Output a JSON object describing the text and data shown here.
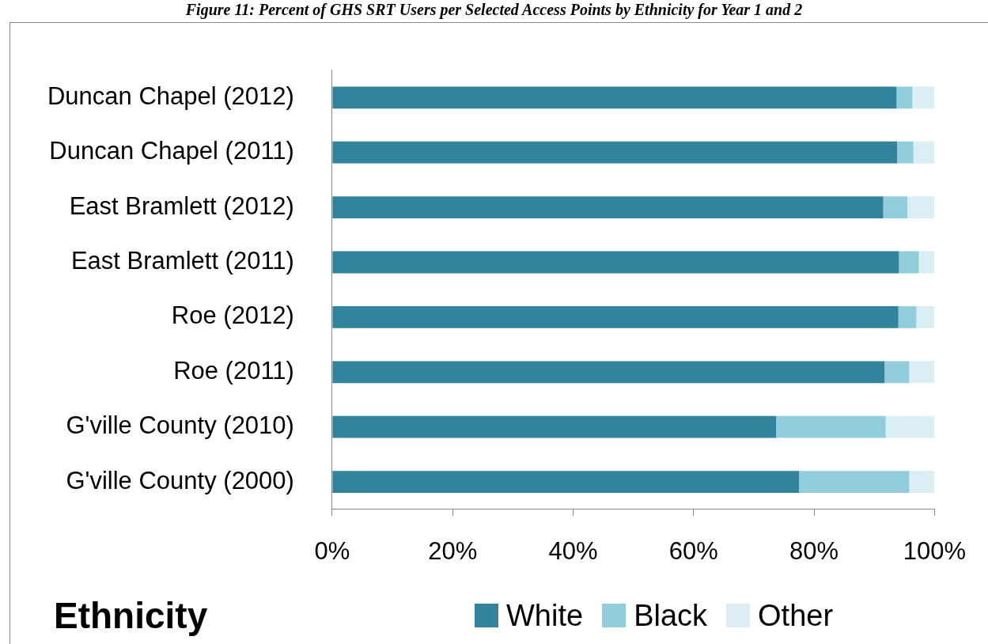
{
  "chart_data": {
    "type": "bar",
    "orientation": "horizontal",
    "stacked": true,
    "title": "Figure 11: Percent of GHS SRT Users per Selected Access Points by Ethnicity for Year 1 and 2",
    "categories": [
      "Duncan Chapel (2012)",
      "Duncan Chapel (2011)",
      "East Bramlett (2012)",
      "East Bramlett (2011)",
      "Roe (2012)",
      "Roe (2011)",
      "G'ville County (2010)",
      "G'ville County (2000)"
    ],
    "series": [
      {
        "name": "White",
        "color": "#31849b",
        "values": [
          93.7,
          93.8,
          91.5,
          94.1,
          94.0,
          91.7,
          73.7,
          77.5
        ]
      },
      {
        "name": "Black",
        "color": "#92cddc",
        "values": [
          2.6,
          2.7,
          4.0,
          3.3,
          3.0,
          4.1,
          18.2,
          18.3
        ]
      },
      {
        "name": "Other",
        "color": "#daeef3",
        "values": [
          3.7,
          3.5,
          4.5,
          2.6,
          3.0,
          4.2,
          8.1,
          4.2
        ]
      }
    ],
    "xlim": [
      0,
      100
    ],
    "xticks": [
      {
        "value": 0,
        "label": "0%"
      },
      {
        "value": 20,
        "label": "20%"
      },
      {
        "value": 40,
        "label": "40%"
      },
      {
        "value": 60,
        "label": "60%"
      },
      {
        "value": 80,
        "label": "80%"
      },
      {
        "value": 100,
        "label": "100%"
      }
    ],
    "legend": "bottom",
    "legend_title": "Ethnicity",
    "grid": false
  }
}
